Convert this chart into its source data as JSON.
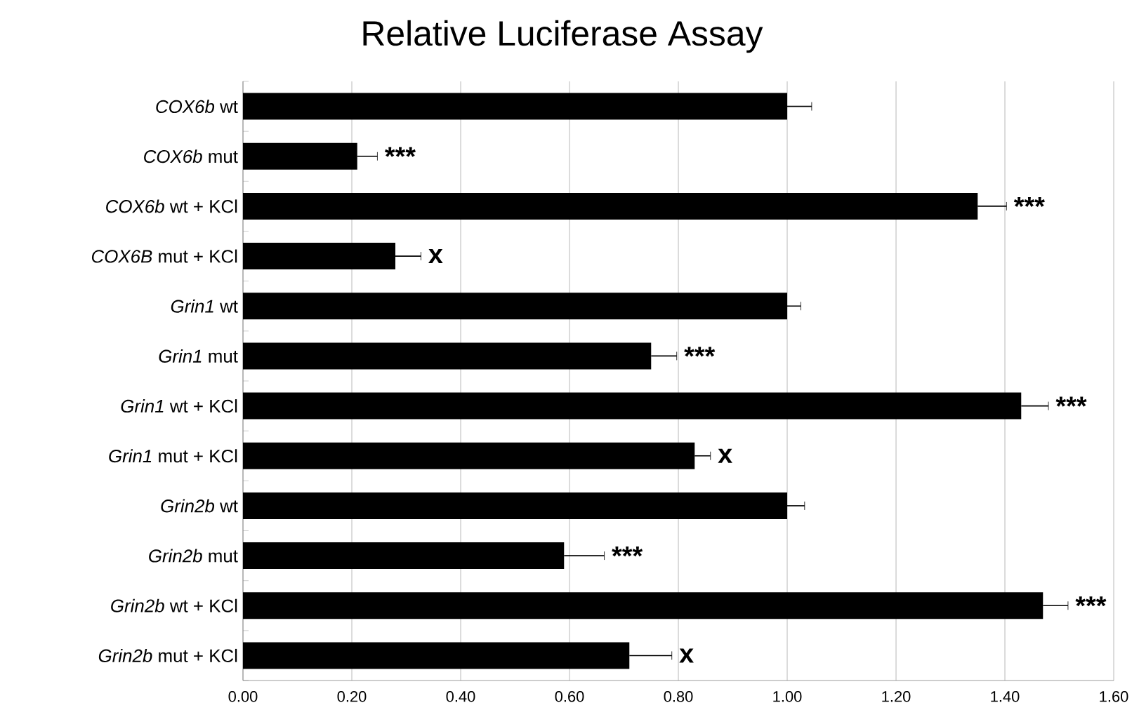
{
  "chart_data": {
    "type": "bar",
    "orientation": "horizontal",
    "title": "Relative Luciferase Assay",
    "categories": [
      "*COX6b* wt",
      "*COX6b* mut",
      "*COX6b* wt + KCl",
      "*COX6B* mut + KCl",
      "*Grin1* wt",
      "*Grin1* mut",
      "*Grin1* wt + KCl",
      "*Grin1* mut + KCl",
      "*Grin2b* wt",
      "*Grin2b* mut",
      "*Grin2b* wt + KCl",
      "*Grin2b* mut + KCl"
    ],
    "values": [
      1.0,
      0.21,
      1.35,
      0.28,
      1.0,
      0.75,
      1.43,
      0.83,
      1.0,
      0.59,
      1.47,
      0.71
    ],
    "errors": [
      [
        1.0,
        1.045
      ],
      [
        0.21,
        0.247
      ],
      [
        1.35,
        1.403
      ],
      [
        0.28,
        0.327
      ],
      [
        1.0,
        1.025
      ],
      [
        0.75,
        0.797
      ],
      [
        1.43,
        1.48
      ],
      [
        0.83,
        0.859
      ],
      [
        1.0,
        1.032
      ],
      [
        0.59,
        0.664
      ],
      [
        1.47,
        1.516
      ],
      [
        0.71,
        0.788
      ]
    ],
    "color": "#000000",
    "xlim": [
      0,
      1.6
    ],
    "xticks": [
      {
        "value": 0,
        "label": "0.00"
      },
      {
        "value": 0.2,
        "label": "0.20"
      },
      {
        "value": 0.4,
        "label": "0.40"
      },
      {
        "value": 0.6,
        "label": "0.60"
      },
      {
        "value": 0.8,
        "label": "0.80"
      },
      {
        "value": 1.0,
        "label": "1.00"
      },
      {
        "value": 1.2,
        "label": "1.20"
      },
      {
        "value": 1.4,
        "label": "1.40"
      },
      {
        "value": 1.6,
        "label": "1.60"
      }
    ],
    "grid": "x",
    "annotations": [
      {
        "text": "***",
        "x": 0.247,
        "y": "*COX6b* mut"
      },
      {
        "text": "***",
        "x": 1.403,
        "y": "*COX6b* wt + KCl"
      },
      {
        "text": "x",
        "x": 0.327,
        "y": "*COX6B* mut + KCl"
      },
      {
        "text": "***",
        "x": 0.797,
        "y": "*Grin1* mut"
      },
      {
        "text": "***",
        "x": 1.48,
        "y": "*Grin1* wt + KCl"
      },
      {
        "text": "x",
        "x": 0.859,
        "y": "*Grin1* mut + KCl"
      },
      {
        "text": "***",
        "x": 0.664,
        "y": "*Grin2b* mut"
      },
      {
        "text": "***",
        "x": 1.516,
        "y": "*Grin2b* wt + KCl"
      },
      {
        "text": "x",
        "x": 0.788,
        "y": "*Grin2b* mut + KCl"
      }
    ]
  }
}
